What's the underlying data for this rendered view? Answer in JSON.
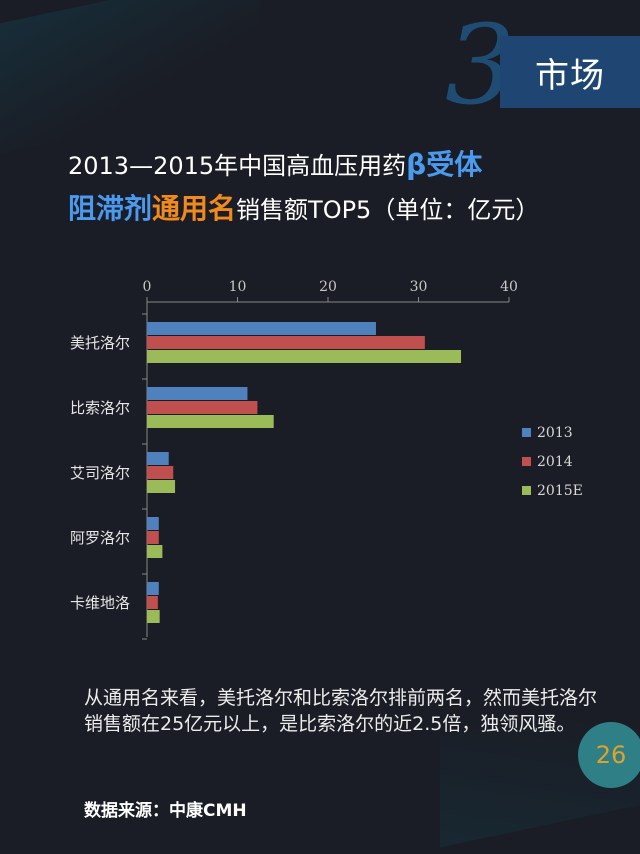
{
  "section": {
    "number": "3",
    "label": "市场"
  },
  "title": {
    "line1_a": "2013—2015年中国高血压用药",
    "line1_b": "β受体",
    "line2_a": "阻滞剂",
    "line2_b": "通用名",
    "line2_c": "销售额TOP5（单位：亿元）"
  },
  "chart_data": {
    "type": "bar",
    "orientation": "horizontal",
    "categories": [
      "美托洛尔",
      "比索洛尔",
      "艾司洛尔",
      "阿罗洛尔",
      "卡维地洛"
    ],
    "series": [
      {
        "name": "2013",
        "color": "#4f81bd",
        "values": [
          25.3,
          11.1,
          2.4,
          1.3,
          1.3
        ]
      },
      {
        "name": "2014",
        "color": "#c0504d",
        "values": [
          30.7,
          12.2,
          2.9,
          1.3,
          1.2
        ]
      },
      {
        "name": "2015E",
        "color": "#9bbb59",
        "values": [
          34.7,
          14.0,
          3.1,
          1.7,
          1.4
        ]
      }
    ],
    "xlim": [
      0,
      40
    ],
    "xticks": [
      "0",
      "10",
      "20",
      "30",
      "40"
    ],
    "legend_position": "right"
  },
  "description": "从通用名来看，美托洛尔和比索洛尔排前两名，然而美托洛尔销售额在25亿元以上，是比索洛尔的近2.5倍，独领风骚。",
  "source": "数据来源：中康CMH",
  "page_number": "26"
}
